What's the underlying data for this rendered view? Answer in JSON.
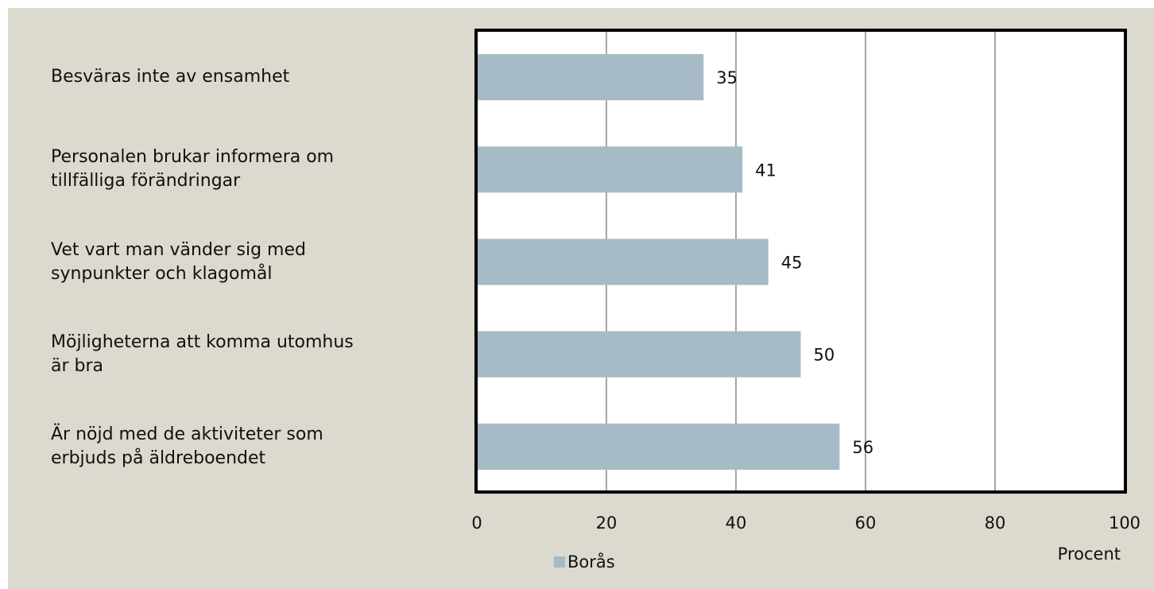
{
  "chart_data": {
    "type": "bar",
    "orientation": "horizontal",
    "categories": [
      "Besväras inte av ensamhet",
      "Personalen brukar informera om\ntillfälliga förändringar",
      "Vet vart man vänder sig med\nsynpunkter och klagomål",
      "Möjligheterna att komma utomhus\när bra",
      "Är nöjd med de aktiviteter som\nerbjuds på äldreboendet"
    ],
    "series": [
      {
        "name": "Borås",
        "color": "#a7bbc6",
        "values": [
          35,
          41,
          45,
          50,
          56
        ]
      }
    ],
    "xlim": [
      0,
      100
    ],
    "xticks": [
      0,
      20,
      40,
      60,
      80,
      100
    ],
    "x_label": "Procent",
    "grid": true,
    "legend": "bottom"
  }
}
